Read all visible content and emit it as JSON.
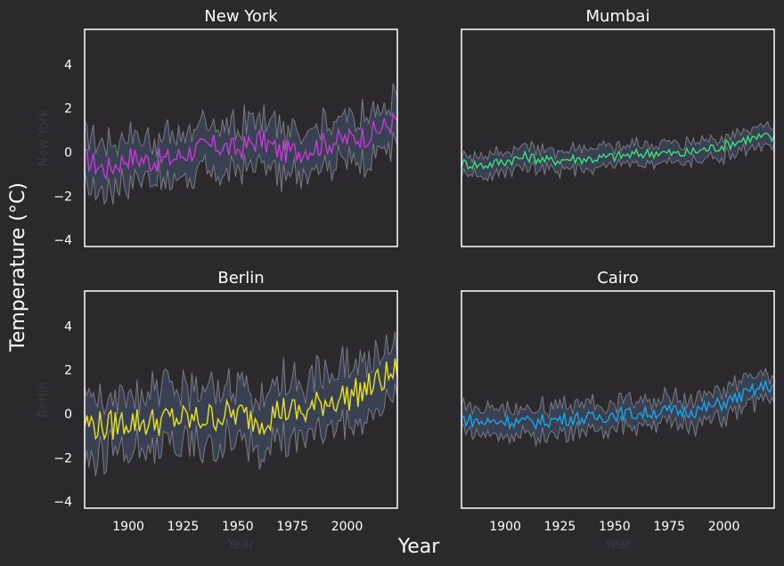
{
  "figure": {
    "supylabel": "Temperature (°C)",
    "supxlabel": "Year",
    "background": "#2b292c",
    "axes_color": "#ffffff",
    "band_color": "#3b4458",
    "band_edge_color": "#7a7a82",
    "hidden_xlabel": "Year"
  },
  "chart_data": [
    {
      "type": "line",
      "title": "New York",
      "hidden_ylabel": "New York",
      "color": "#c43bd8",
      "xlim": [
        1880,
        2023
      ],
      "ylim": [
        -4.3,
        5.6
      ],
      "xticks": [],
      "yticks": [
        -4,
        -2,
        0,
        2,
        4
      ],
      "series": [
        {
          "x": [
            1880,
            1890,
            1900,
            1910,
            1920,
            1930,
            1940,
            1950,
            1960,
            1970,
            1980,
            1990,
            2000,
            2010,
            2020,
            2023
          ],
          "y": [
            -0.3,
            -0.8,
            -0.2,
            -0.4,
            -0.3,
            0.1,
            0.3,
            0.1,
            0.6,
            0.0,
            0.1,
            0.4,
            0.6,
            0.8,
            1.3,
            1.5
          ],
          "band": 1.0
        }
      ]
    },
    {
      "type": "line",
      "title": "Mumbai",
      "hidden_ylabel": "",
      "color": "#3ee07a",
      "xlim": [
        1880,
        2023
      ],
      "ylim": [
        -4.3,
        5.6
      ],
      "xticks": [],
      "yticks": [],
      "series": [
        {
          "x": [
            1880,
            1890,
            1900,
            1910,
            1920,
            1930,
            1940,
            1950,
            1960,
            1970,
            1980,
            1990,
            2000,
            2010,
            2020,
            2023
          ],
          "y": [
            -0.5,
            -0.6,
            -0.4,
            -0.2,
            -0.4,
            -0.3,
            -0.3,
            -0.2,
            -0.1,
            0.0,
            -0.1,
            0.1,
            0.3,
            0.6,
            0.7,
            0.6
          ],
          "band": 0.45
        }
      ]
    },
    {
      "type": "line",
      "title": "Berlin",
      "hidden_ylabel": "Berlin",
      "color": "#e8e41a",
      "xlim": [
        1880,
        2023
      ],
      "ylim": [
        -4.3,
        5.6
      ],
      "xticks": [
        1900,
        1925,
        1950,
        1975,
        2000
      ],
      "yticks": [
        -4,
        -2,
        0,
        2,
        4
      ],
      "series": [
        {
          "x": [
            1880,
            1890,
            1900,
            1910,
            1920,
            1930,
            1940,
            1950,
            1960,
            1970,
            1980,
            1990,
            2000,
            2010,
            2020,
            2023
          ],
          "y": [
            -0.4,
            -0.6,
            -0.3,
            -0.4,
            -0.2,
            -0.3,
            -0.1,
            0.0,
            -0.3,
            0.2,
            0.0,
            0.6,
            0.8,
            1.2,
            1.8,
            2.0
          ],
          "band": 1.3
        }
      ]
    },
    {
      "type": "line",
      "title": "Cairo",
      "hidden_ylabel": "",
      "color": "#1aa6e8",
      "xlim": [
        1880,
        2023
      ],
      "ylim": [
        -4.3,
        5.6
      ],
      "xticks": [
        1900,
        1925,
        1950,
        1975,
        2000
      ],
      "yticks": [],
      "series": [
        {
          "x": [
            1880,
            1890,
            1900,
            1910,
            1920,
            1930,
            1940,
            1950,
            1960,
            1970,
            1980,
            1990,
            2000,
            2010,
            2020,
            2023
          ],
          "y": [
            -0.2,
            -0.4,
            -0.3,
            -0.4,
            -0.3,
            -0.2,
            -0.2,
            0.0,
            0.0,
            0.1,
            0.1,
            0.2,
            0.5,
            0.9,
            1.3,
            1.2
          ],
          "band": 0.6
        }
      ]
    }
  ]
}
